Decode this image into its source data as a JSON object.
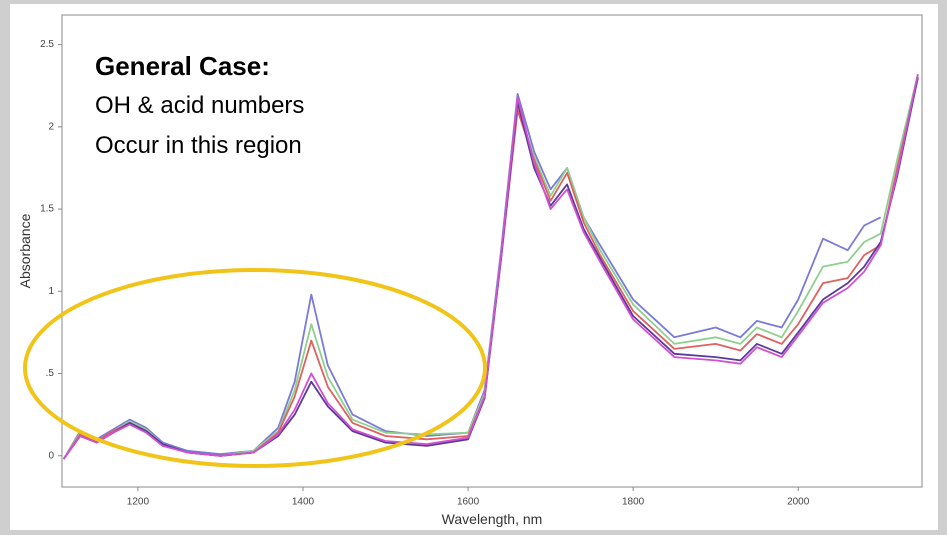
{
  "chart_data": {
    "type": "line",
    "annotations": [
      "General Case:",
      "OH & acid numbers",
      "Occur in this region"
    ],
    "xlabel": "Wavelength, nm",
    "ylabel": "Absorbance",
    "x": [
      1110,
      1130,
      1150,
      1170,
      1190,
      1210,
      1230,
      1260,
      1300,
      1340,
      1370,
      1390,
      1410,
      1430,
      1460,
      1500,
      1550,
      1600,
      1620,
      1640,
      1660,
      1680,
      1700,
      1720,
      1740,
      1760,
      1800,
      1850,
      1900,
      1930,
      1950,
      1980,
      2000,
      2030,
      2060,
      2080,
      2100,
      2120,
      2145
    ],
    "series": [
      {
        "color": "#7a7ad8",
        "values": [
          -0.02,
          0.15,
          0.1,
          0.16,
          0.22,
          0.17,
          0.08,
          0.03,
          0.01,
          0.03,
          0.17,
          0.45,
          0.98,
          0.55,
          0.25,
          0.15,
          0.12,
          0.14,
          0.4,
          1.25,
          2.2,
          1.85,
          1.62,
          1.75,
          1.45,
          1.28,
          0.95,
          0.72,
          0.78,
          0.72,
          0.82,
          0.78,
          0.95,
          1.32,
          1.25,
          1.4,
          1.45,
          null,
          null
        ]
      },
      {
        "color": "#8fd08f",
        "values": [
          -0.02,
          0.14,
          0.09,
          0.15,
          0.21,
          0.16,
          0.07,
          0.02,
          0.0,
          0.03,
          0.15,
          0.4,
          0.8,
          0.48,
          0.22,
          0.14,
          0.13,
          0.14,
          0.38,
          1.22,
          2.12,
          1.82,
          1.58,
          1.75,
          1.45,
          1.25,
          0.92,
          0.68,
          0.72,
          0.68,
          0.78,
          0.72,
          0.88,
          1.15,
          1.18,
          1.3,
          1.35,
          1.8,
          2.32
        ]
      },
      {
        "color": "#e06060",
        "values": [
          -0.02,
          0.13,
          0.09,
          0.15,
          0.2,
          0.15,
          0.07,
          0.02,
          0.0,
          0.02,
          0.14,
          0.36,
          0.7,
          0.42,
          0.2,
          0.12,
          0.1,
          0.12,
          0.36,
          1.2,
          2.1,
          1.8,
          1.55,
          1.72,
          1.42,
          1.22,
          0.88,
          0.65,
          0.68,
          0.64,
          0.74,
          0.68,
          0.8,
          1.05,
          1.08,
          1.22,
          1.28,
          1.75,
          2.3
        ]
      },
      {
        "color": "#5a3a9a",
        "values": [
          -0.02,
          0.12,
          0.08,
          0.14,
          0.2,
          0.15,
          0.07,
          0.02,
          0.0,
          0.02,
          0.12,
          0.25,
          0.45,
          0.3,
          0.15,
          0.08,
          0.06,
          0.1,
          0.35,
          1.2,
          2.15,
          1.75,
          1.52,
          1.65,
          1.38,
          1.2,
          0.85,
          0.62,
          0.6,
          0.58,
          0.68,
          0.62,
          0.75,
          0.95,
          1.05,
          1.15,
          1.3,
          1.7,
          2.3
        ]
      },
      {
        "color": "#d050d0",
        "values": [
          -0.02,
          0.12,
          0.08,
          0.14,
          0.19,
          0.14,
          0.06,
          0.02,
          0.0,
          0.02,
          0.13,
          0.28,
          0.5,
          0.32,
          0.16,
          0.09,
          0.07,
          0.11,
          0.36,
          1.22,
          2.18,
          1.78,
          1.5,
          1.62,
          1.36,
          1.18,
          0.83,
          0.6,
          0.58,
          0.56,
          0.66,
          0.6,
          0.73,
          0.93,
          1.02,
          1.12,
          1.28,
          1.72,
          2.32
        ]
      }
    ],
    "xlim": [
      1108,
      2150
    ],
    "ylim": [
      -0.19,
      2.68
    ],
    "xticks": [
      1200,
      1400,
      1600,
      1800,
      2000
    ],
    "yticks": [
      0,
      {
        "value": 0.5,
        "label": ".5"
      },
      1,
      1.5,
      2,
      2.5
    ]
  }
}
